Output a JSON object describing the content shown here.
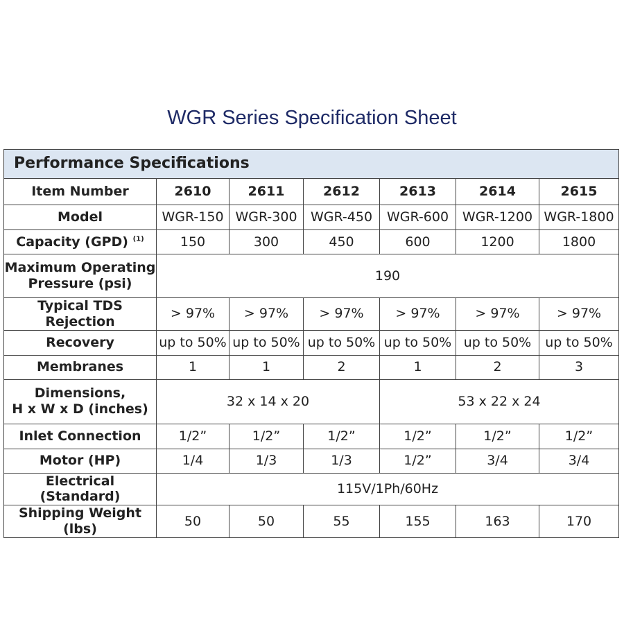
{
  "title": "WGR Series Specification Sheet",
  "section": "Performance Specifications",
  "rows": {
    "item_number": {
      "label": "Item Number",
      "values": [
        "2610",
        "2611",
        "2612",
        "2613",
        "2614",
        "2615"
      ]
    },
    "model": {
      "label": "Model",
      "values": [
        "WGR-150",
        "WGR-300",
        "WGR-450",
        "WGR-600",
        "WGR-1200",
        "WGR-1800"
      ]
    },
    "capacity": {
      "label": "Capacity (GPD)",
      "footnote": "(1)",
      "values": [
        "150",
        "300",
        "450",
        "600",
        "1200",
        "1800"
      ]
    },
    "max_pressure": {
      "label_line1": "Maximum Operating",
      "label_line2": "Pressure (psi)",
      "value": "190"
    },
    "tds": {
      "label": "Typical TDS Rejection",
      "values": [
        "> 97%",
        "> 97%",
        "> 97%",
        "> 97%",
        "> 97%",
        "> 97%"
      ]
    },
    "recovery": {
      "label": "Recovery",
      "values": [
        "up to 50%",
        "up to 50%",
        "up to 50%",
        "up to 50%",
        "up to 50%",
        "up to 50%"
      ]
    },
    "membranes": {
      "label": "Membranes",
      "values": [
        "1",
        "1",
        "2",
        "1",
        "2",
        "3"
      ]
    },
    "dimensions": {
      "label_line1": "Dimensions,",
      "label_line2": "H x W x D (inches)",
      "values": [
        "32 x 14 x 20",
        "53 x 22 x 24"
      ]
    },
    "inlet": {
      "label": "Inlet Connection",
      "values": [
        "1/2”",
        "1/2”",
        "1/2”",
        "1/2”",
        "1/2”",
        "1/2”"
      ]
    },
    "motor": {
      "label": "Motor (HP)",
      "values": [
        "1/4",
        "1/3",
        "1/3",
        "1/2”",
        "3/4",
        "3/4"
      ]
    },
    "electrical": {
      "label": "Electrical (Standard)",
      "value": "115V/1Ph/60Hz"
    },
    "weight": {
      "label": "Shipping Weight (lbs)",
      "values": [
        "50",
        "50",
        "55",
        "155",
        "163",
        "170"
      ]
    }
  }
}
